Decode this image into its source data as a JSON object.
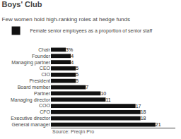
{
  "chart_data": {
    "type": "bar",
    "orientation": "horizontal",
    "title": "Boys' Club",
    "subtitle": "Few women hold high-ranking roles at hedge funds",
    "source": "Source: Preqin Pro",
    "categories": [
      "Chair",
      "Founder",
      "Managing partner",
      "CEO",
      "CIO",
      "President",
      "Board member",
      "Partner",
      "Managing director",
      "COO",
      "CFO",
      "Executive director",
      "General manager"
    ],
    "series": [
      {
        "name": "Female senior employees as a proportion of senior staff",
        "color": "#111111",
        "values": [
          3,
          4,
          4,
          5,
          5,
          5,
          7,
          10,
          11,
          17,
          18,
          18,
          21
        ],
        "value_labels": [
          "3%",
          "4",
          "4",
          "5",
          "5",
          "5",
          "7",
          "10",
          "11",
          "17",
          "18",
          "18",
          "21"
        ]
      }
    ],
    "data_labels": true,
    "xlim": [
      0,
      25
    ],
    "xticks": [],
    "tick_labels": "y",
    "grid": false,
    "legend": "upper left"
  }
}
